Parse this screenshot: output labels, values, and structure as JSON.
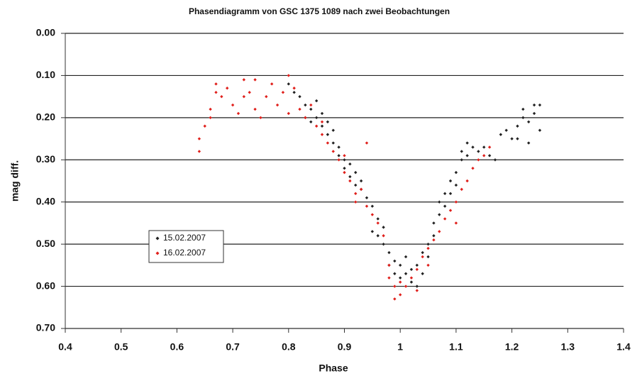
{
  "chart_data": {
    "type": "scatter",
    "title": "Phasendiagramm von GSC 1375 1089 nach zwei Beobachtungen",
    "xlabel": "Phase",
    "ylabel": "mag diff.",
    "xlim": [
      0.4,
      1.4
    ],
    "xticks": [
      0.4,
      0.5,
      0.6,
      0.7,
      0.8,
      0.9,
      1,
      1.1,
      1.2,
      1.3,
      1.4
    ],
    "ylim": [
      0,
      0.7
    ],
    "invert_y": true,
    "yticks": [
      {
        "value": 0,
        "label": "0.00"
      },
      {
        "value": 0.1,
        "label": "0.10"
      },
      {
        "value": 0.2,
        "label": "0.20"
      },
      {
        "value": 0.3,
        "label": "0.30"
      },
      {
        "value": 0.4,
        "label": "0.40"
      },
      {
        "value": 0.5,
        "label": "0.50"
      },
      {
        "value": 0.6,
        "label": "0.60"
      },
      {
        "value": 0.7,
        "label": "0.70"
      }
    ],
    "grid": true,
    "legend": "left",
    "series": [
      {
        "name": "15.02.2007",
        "color": "#222222",
        "x": [
          0.8,
          0.81,
          0.82,
          0.83,
          0.83,
          0.84,
          0.84,
          0.85,
          0.85,
          0.86,
          0.86,
          0.87,
          0.87,
          0.88,
          0.88,
          0.89,
          0.89,
          0.9,
          0.9,
          0.91,
          0.91,
          0.92,
          0.92,
          0.93,
          0.93,
          0.94,
          0.95,
          0.95,
          0.96,
          0.96,
          0.97,
          0.97,
          0.98,
          0.98,
          0.99,
          0.99,
          1.0,
          1.0,
          1.01,
          1.01,
          1.02,
          1.02,
          1.03,
          1.03,
          1.04,
          1.04,
          1.05,
          1.05,
          1.06,
          1.06,
          1.07,
          1.07,
          1.08,
          1.08,
          1.09,
          1.09,
          1.1,
          1.1,
          1.11,
          1.11,
          1.12,
          1.12,
          1.13,
          1.14,
          1.15,
          1.16,
          1.17,
          1.18,
          1.19,
          1.2,
          1.21,
          1.21,
          1.22,
          1.22,
          1.23,
          1.23,
          1.24,
          1.24,
          1.25,
          1.25
        ],
        "values": [
          0.12,
          0.14,
          0.15,
          0.17,
          0.2,
          0.18,
          0.21,
          0.16,
          0.2,
          0.19,
          0.22,
          0.21,
          0.24,
          0.23,
          0.26,
          0.27,
          0.29,
          0.3,
          0.32,
          0.31,
          0.34,
          0.33,
          0.36,
          0.35,
          0.37,
          0.39,
          0.41,
          0.47,
          0.44,
          0.48,
          0.46,
          0.5,
          0.52,
          0.55,
          0.54,
          0.57,
          0.55,
          0.58,
          0.53,
          0.57,
          0.56,
          0.59,
          0.55,
          0.6,
          0.57,
          0.52,
          0.53,
          0.5,
          0.48,
          0.45,
          0.43,
          0.4,
          0.41,
          0.38,
          0.38,
          0.35,
          0.36,
          0.33,
          0.3,
          0.28,
          0.29,
          0.26,
          0.27,
          0.28,
          0.27,
          0.29,
          0.3,
          0.24,
          0.23,
          0.25,
          0.22,
          0.25,
          0.2,
          0.18,
          0.21,
          0.26,
          0.19,
          0.17,
          0.17,
          0.23
        ]
      },
      {
        "name": "16.02.2007",
        "color": "#e0201c",
        "x": [
          0.64,
          0.64,
          0.65,
          0.66,
          0.66,
          0.67,
          0.67,
          0.68,
          0.69,
          0.7,
          0.71,
          0.72,
          0.72,
          0.73,
          0.74,
          0.74,
          0.75,
          0.76,
          0.77,
          0.78,
          0.79,
          0.8,
          0.8,
          0.81,
          0.82,
          0.83,
          0.84,
          0.85,
          0.86,
          0.86,
          0.87,
          0.88,
          0.89,
          0.9,
          0.9,
          0.91,
          0.92,
          0.92,
          0.93,
          0.94,
          0.94,
          0.95,
          0.96,
          0.97,
          0.98,
          0.98,
          0.99,
          0.99,
          1.0,
          1.0,
          1.01,
          1.02,
          1.03,
          1.03,
          1.04,
          1.05,
          1.05,
          1.06,
          1.07,
          1.08,
          1.09,
          1.1,
          1.1,
          1.11,
          1.12,
          1.13,
          1.14,
          1.15,
          1.16
        ],
        "values": [
          0.28,
          0.25,
          0.22,
          0.18,
          0.2,
          0.14,
          0.12,
          0.15,
          0.13,
          0.17,
          0.19,
          0.15,
          0.11,
          0.14,
          0.18,
          0.11,
          0.2,
          0.15,
          0.12,
          0.17,
          0.14,
          0.1,
          0.19,
          0.13,
          0.18,
          0.2,
          0.17,
          0.22,
          0.24,
          0.21,
          0.26,
          0.28,
          0.3,
          0.33,
          0.29,
          0.35,
          0.4,
          0.38,
          0.37,
          0.26,
          0.41,
          0.43,
          0.45,
          0.48,
          0.55,
          0.58,
          0.63,
          0.6,
          0.62,
          0.59,
          0.6,
          0.58,
          0.61,
          0.56,
          0.53,
          0.55,
          0.51,
          0.49,
          0.47,
          0.44,
          0.42,
          0.45,
          0.4,
          0.37,
          0.35,
          0.32,
          0.3,
          0.29,
          0.27
        ]
      }
    ]
  }
}
